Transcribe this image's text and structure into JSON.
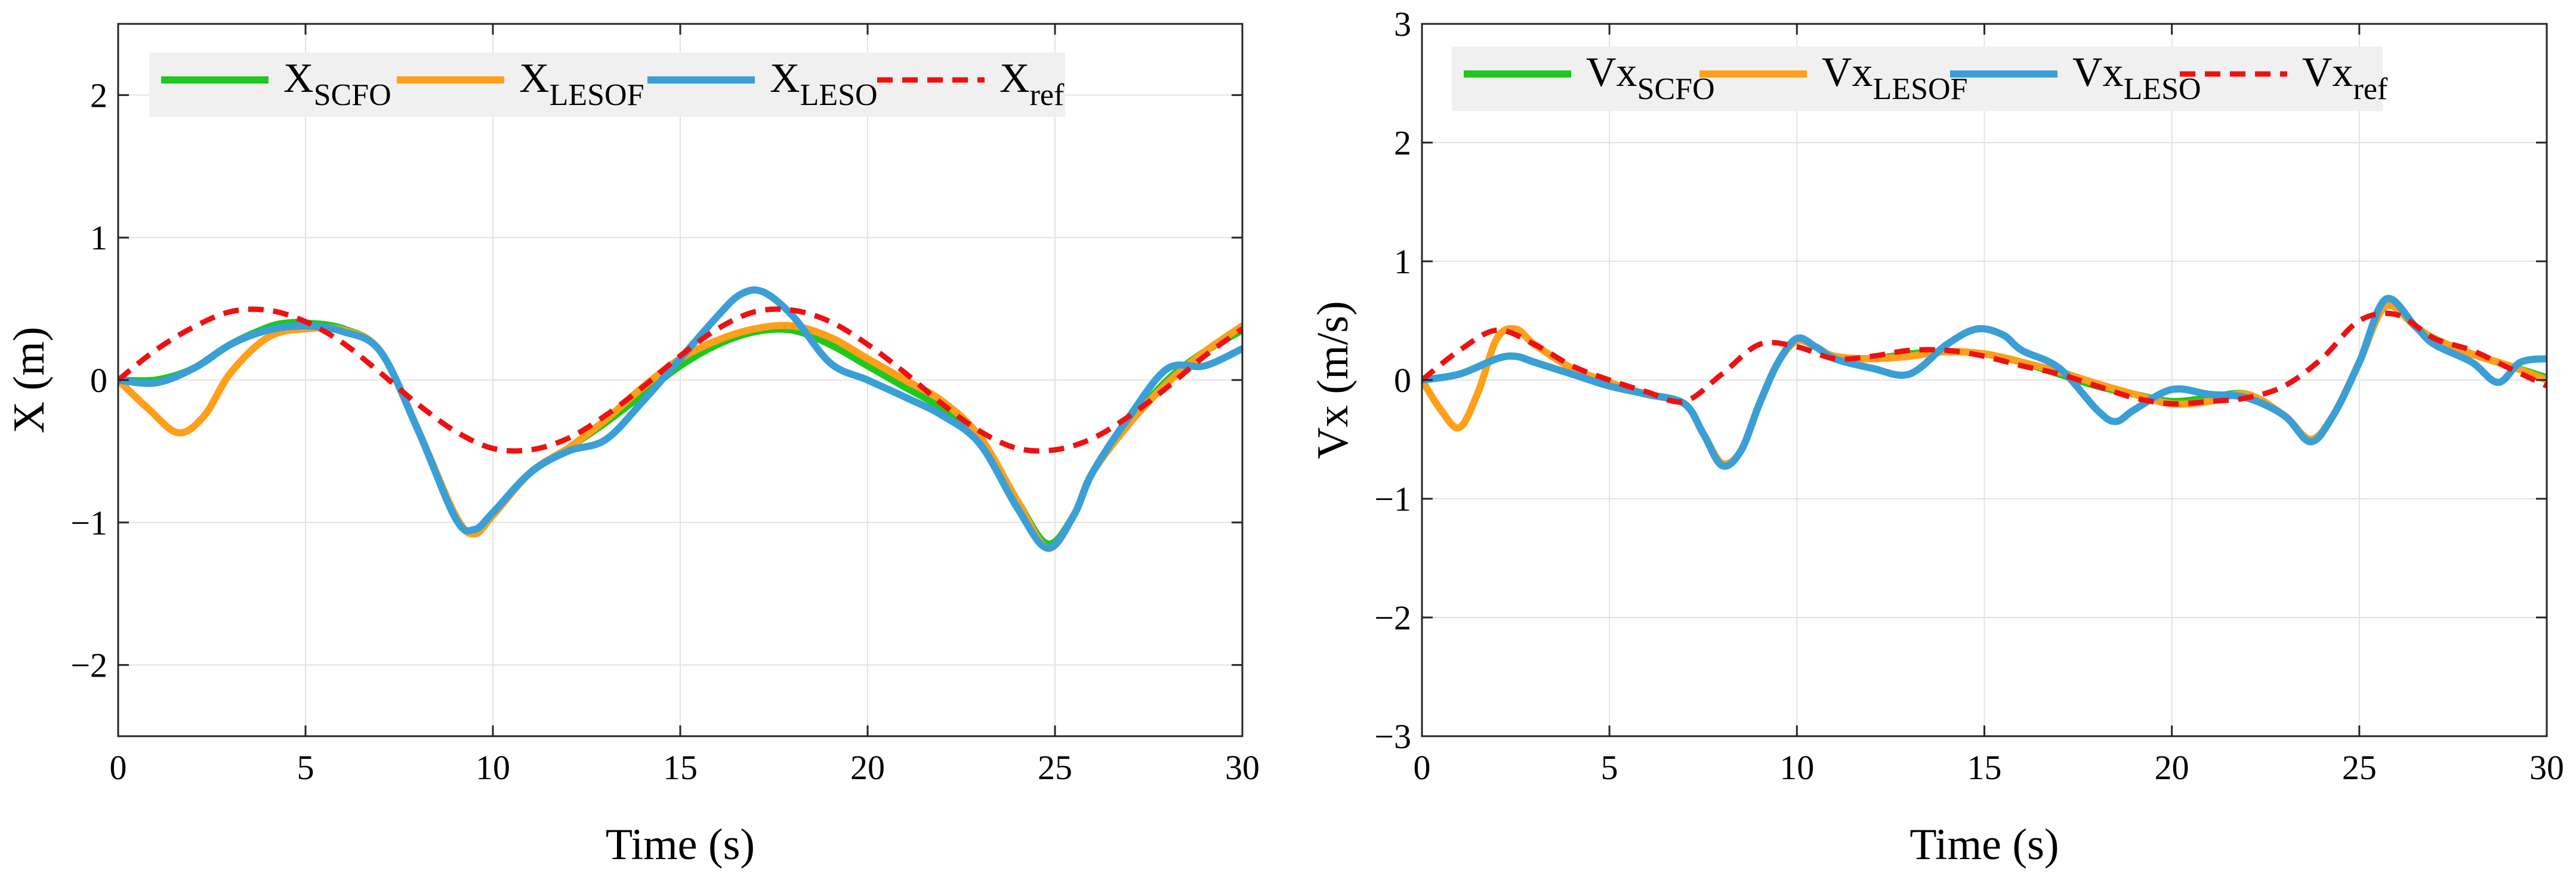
{
  "colors": {
    "scfo": "#1ec81e",
    "lesof": "#ff9f1a",
    "leso": "#3a9fd6",
    "ref": "#ee1111",
    "grid": "#e3e3e3",
    "legend_bg": "#f0f0f0"
  },
  "chart_data": [
    {
      "type": "line",
      "xlabel": "Time (s)",
      "ylabel": "X (m)",
      "xlim": [
        0,
        30
      ],
      "ylim": [
        -2.5,
        2.5
      ],
      "xticks": [
        0,
        5,
        10,
        15,
        20,
        25,
        30
      ],
      "yticks": [
        -2,
        -1,
        0,
        1,
        2
      ],
      "xtick_labels": [
        "0",
        "5",
        "10",
        "15",
        "20",
        "25",
        "30"
      ],
      "ytick_labels": [
        "−2",
        "−1",
        "0",
        "1",
        "2"
      ],
      "grid": true,
      "legend_position": "top-left",
      "series": [
        {
          "key": "scfo",
          "name": "X",
          "subscript": "SCFO",
          "color": "#1ec81e",
          "dash": "solid",
          "x": [
            0,
            1,
            2,
            3,
            4,
            4.5,
            5,
            6,
            7,
            8,
            9,
            9.5,
            10,
            11,
            12,
            13,
            14,
            15,
            16,
            17,
            18,
            19,
            20,
            21,
            22,
            23,
            24,
            24.8,
            25.5,
            26,
            27,
            28,
            29,
            30
          ],
          "y": [
            0,
            0.0,
            0.08,
            0.25,
            0.37,
            0.4,
            0.4,
            0.36,
            0.2,
            -0.35,
            -0.95,
            -1.08,
            -0.95,
            -0.65,
            -0.48,
            -0.3,
            -0.1,
            0.1,
            0.25,
            0.34,
            0.35,
            0.25,
            0.1,
            -0.05,
            -0.2,
            -0.42,
            -0.85,
            -1.15,
            -0.95,
            -0.65,
            -0.3,
            0.0,
            0.2,
            0.35
          ]
        },
        {
          "key": "lesof",
          "name": "X",
          "subscript": "LESOF",
          "color": "#ff9f1a",
          "dash": "solid",
          "x": [
            0,
            0.8,
            1.6,
            2.3,
            3,
            4,
            5,
            6,
            7,
            8,
            9,
            9.5,
            10,
            11,
            12,
            13,
            14,
            15,
            16,
            17,
            18,
            19,
            20,
            21,
            22,
            23,
            24,
            24.8,
            25.5,
            26,
            27,
            28,
            29,
            30
          ],
          "y": [
            0,
            -0.2,
            -0.37,
            -0.25,
            0.05,
            0.3,
            0.36,
            0.35,
            0.2,
            -0.35,
            -0.95,
            -1.08,
            -0.95,
            -0.65,
            -0.48,
            -0.28,
            -0.05,
            0.15,
            0.28,
            0.36,
            0.38,
            0.3,
            0.15,
            0.0,
            -0.15,
            -0.4,
            -0.85,
            -1.18,
            -0.95,
            -0.65,
            -0.3,
            -0.02,
            0.2,
            0.38
          ]
        },
        {
          "key": "leso",
          "name": "X",
          "subscript": "LESO",
          "color": "#3a9fd6",
          "dash": "solid",
          "x": [
            0,
            1,
            2,
            3,
            4,
            5,
            6,
            7,
            8,
            9,
            9.5,
            10,
            11,
            12,
            13,
            14,
            15,
            16,
            16.6,
            17.2,
            18,
            19,
            20,
            21,
            22,
            23,
            24,
            24.8,
            25.5,
            26,
            27,
            28,
            29,
            30
          ],
          "y": [
            0,
            -0.02,
            0.08,
            0.25,
            0.35,
            0.38,
            0.34,
            0.2,
            -0.35,
            -0.97,
            -1.05,
            -0.93,
            -0.65,
            -0.5,
            -0.42,
            -0.15,
            0.15,
            0.45,
            0.6,
            0.62,
            0.45,
            0.12,
            0.0,
            -0.12,
            -0.25,
            -0.45,
            -0.9,
            -1.18,
            -0.95,
            -0.65,
            -0.25,
            0.08,
            0.1,
            0.22
          ]
        },
        {
          "key": "ref",
          "name": "X",
          "subscript": "ref",
          "color": "#ee1111",
          "dash": "dashed",
          "x": [
            0,
            1,
            2,
            3,
            4,
            5,
            6,
            7,
            8,
            9,
            10,
            11,
            12,
            13,
            14,
            15,
            16,
            17,
            18,
            19,
            20,
            21,
            22,
            23,
            24,
            25,
            26,
            27,
            28,
            29,
            30
          ],
          "y": [
            0,
            0.21,
            0.37,
            0.48,
            0.49,
            0.41,
            0.26,
            0.05,
            -0.17,
            -0.36,
            -0.48,
            -0.49,
            -0.41,
            -0.25,
            -0.05,
            0.17,
            0.36,
            0.48,
            0.49,
            0.41,
            0.25,
            0.05,
            -0.17,
            -0.36,
            -0.48,
            -0.49,
            -0.41,
            -0.25,
            -0.05,
            0.17,
            0.36
          ]
        }
      ]
    },
    {
      "type": "line",
      "xlabel": "Time (s)",
      "ylabel": "Vx (m/s)",
      "xlim": [
        0,
        30
      ],
      "ylim": [
        -3,
        3
      ],
      "xticks": [
        0,
        5,
        10,
        15,
        20,
        25,
        30
      ],
      "yticks": [
        -3,
        -2,
        -1,
        0,
        1,
        2,
        3
      ],
      "xtick_labels": [
        "0",
        "5",
        "10",
        "15",
        "20",
        "25",
        "30"
      ],
      "ytick_labels": [
        "−3",
        "−2",
        "−1",
        "0",
        "1",
        "2",
        "3"
      ],
      "grid": true,
      "legend_position": "top-left",
      "series": [
        {
          "key": "scfo",
          "name": "Vx",
          "subscript": "SCFO",
          "color": "#1ec81e",
          "dash": "solid",
          "x": [
            0,
            1,
            2,
            2.5,
            3,
            4,
            5,
            6,
            7,
            7.5,
            8,
            8.5,
            9,
            9.5,
            10,
            10.5,
            11,
            12,
            13,
            14,
            15,
            16,
            17,
            18,
            19,
            20,
            21,
            22,
            23,
            23.7,
            24.3,
            25,
            25.7,
            26.5,
            27,
            28,
            29,
            30
          ],
          "y": [
            0,
            0.05,
            0.18,
            0.2,
            0.15,
            0.05,
            -0.05,
            -0.12,
            -0.2,
            -0.45,
            -0.7,
            -0.6,
            -0.2,
            0.15,
            0.33,
            0.28,
            0.2,
            0.18,
            0.22,
            0.24,
            0.22,
            0.15,
            0.05,
            -0.05,
            -0.12,
            -0.18,
            -0.15,
            -0.12,
            -0.3,
            -0.5,
            -0.3,
            0.15,
            0.65,
            0.45,
            0.35,
            0.22,
            0.12,
            0.02
          ]
        },
        {
          "key": "lesof",
          "name": "Vx",
          "subscript": "LESOF",
          "color": "#ff9f1a",
          "dash": "solid",
          "x": [
            0,
            0.5,
            1,
            1.5,
            2,
            2.5,
            3,
            4,
            5,
            6,
            7,
            7.5,
            8,
            8.5,
            9,
            9.5,
            10,
            10.5,
            11,
            12,
            13,
            14,
            15,
            16,
            17,
            18,
            19,
            20,
            21,
            22,
            23,
            23.7,
            24.3,
            25,
            25.7,
            26.5,
            27,
            28,
            29,
            30
          ],
          "y": [
            0,
            -0.25,
            -0.4,
            -0.1,
            0.35,
            0.43,
            0.3,
            0.1,
            -0.02,
            -0.12,
            -0.2,
            -0.45,
            -0.7,
            -0.6,
            -0.2,
            0.15,
            0.33,
            0.28,
            0.2,
            0.18,
            0.2,
            0.24,
            0.22,
            0.15,
            0.07,
            -0.03,
            -0.12,
            -0.2,
            -0.18,
            -0.12,
            -0.3,
            -0.5,
            -0.3,
            0.15,
            0.62,
            0.45,
            0.35,
            0.22,
            0.12,
            0.0
          ]
        },
        {
          "key": "leso",
          "name": "Vx",
          "subscript": "LESO",
          "color": "#3a9fd6",
          "dash": "solid",
          "x": [
            0,
            1,
            2,
            2.5,
            3,
            4,
            5,
            6,
            7,
            7.5,
            8,
            8.5,
            9,
            9.5,
            10,
            10.5,
            11,
            12,
            13,
            14,
            14.8,
            15.5,
            16,
            17,
            18,
            18.5,
            19,
            20,
            21,
            22,
            23,
            23.7,
            24.3,
            25,
            25.7,
            26.5,
            27,
            28,
            28.7,
            29.3,
            30
          ],
          "y": [
            0,
            0.05,
            0.18,
            0.2,
            0.15,
            0.05,
            -0.05,
            -0.12,
            -0.2,
            -0.45,
            -0.72,
            -0.6,
            -0.2,
            0.15,
            0.35,
            0.28,
            0.18,
            0.1,
            0.05,
            0.3,
            0.43,
            0.38,
            0.25,
            0.1,
            -0.25,
            -0.35,
            -0.25,
            -0.08,
            -0.12,
            -0.15,
            -0.3,
            -0.52,
            -0.3,
            0.15,
            0.68,
            0.45,
            0.3,
            0.15,
            -0.02,
            0.15,
            0.18
          ]
        },
        {
          "key": "ref",
          "name": "Vx",
          "subscript": "ref",
          "color": "#ee1111",
          "dash": "dashed",
          "x": [
            0,
            1,
            2,
            3,
            4,
            5,
            6,
            7,
            8,
            9,
            10,
            11,
            12,
            13,
            14,
            15,
            16,
            17,
            18,
            19,
            20,
            21,
            22,
            23,
            24,
            25,
            26,
            27,
            28,
            29,
            30
          ],
          "y": [
            0,
            0.25,
            0.42,
            0.3,
            0.12,
            0.0,
            -0.1,
            -0.18,
            0.05,
            0.3,
            0.28,
            0.18,
            0.2,
            0.25,
            0.25,
            0.2,
            0.12,
            0.05,
            -0.05,
            -0.15,
            -0.2,
            -0.18,
            -0.15,
            -0.05,
            0.18,
            0.5,
            0.55,
            0.35,
            0.25,
            0.1,
            -0.05
          ]
        }
      ]
    }
  ]
}
